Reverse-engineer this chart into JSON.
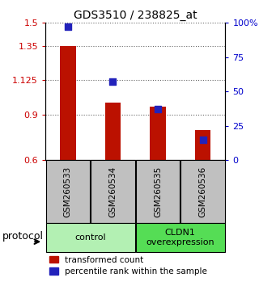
{
  "title": "GDS3510 / 238825_at",
  "samples": [
    "GSM260533",
    "GSM260534",
    "GSM260535",
    "GSM260536"
  ],
  "red_values": [
    1.35,
    0.975,
    0.95,
    0.795
  ],
  "blue_values_pct": [
    97,
    57,
    37,
    15
  ],
  "ylim_left": [
    0.6,
    1.5
  ],
  "ylim_right": [
    0,
    100
  ],
  "yticks_left": [
    0.6,
    0.9,
    1.125,
    1.35,
    1.5
  ],
  "ytick_labels_left": [
    "0.6",
    "0.9",
    "1.125",
    "1.35",
    "1.5"
  ],
  "yticks_right": [
    0,
    25,
    50,
    75,
    100
  ],
  "ytick_labels_right": [
    "0",
    "25",
    "50",
    "75",
    "100%"
  ],
  "groups": [
    {
      "label": "control",
      "samples": [
        0,
        1
      ],
      "color": "#b3f0b3"
    },
    {
      "label": "CLDN1\noverexpression",
      "samples": [
        2,
        3
      ],
      "color": "#55dd55"
    }
  ],
  "bar_color": "#bb1100",
  "dot_color": "#2222bb",
  "bar_width": 0.35,
  "dot_size": 40,
  "grid_color": "#666666",
  "bg_color": "#ffffff",
  "tick_label_color_left": "#cc0000",
  "tick_label_color_right": "#0000cc",
  "legend_red_label": "transformed count",
  "legend_blue_label": "percentile rank within the sample",
  "protocol_label": "protocol"
}
